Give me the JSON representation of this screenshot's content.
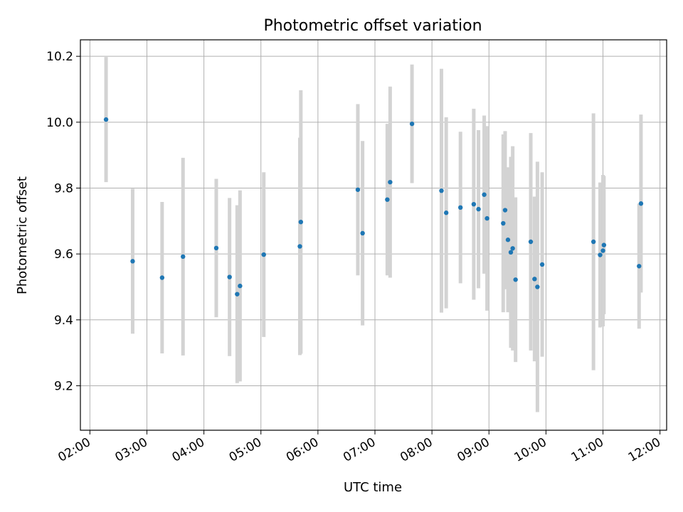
{
  "chart_data": {
    "type": "scatter",
    "title": "Photometric offset variation",
    "xlabel": "UTC time",
    "ylabel": "Photometric offset",
    "x_ticks": [
      "02:00",
      "03:00",
      "04:00",
      "05:00",
      "06:00",
      "07:00",
      "08:00",
      "09:00",
      "10:00",
      "11:00",
      "12:00"
    ],
    "y_ticks": [
      9.2,
      9.4,
      9.6,
      9.8,
      10.0,
      10.2
    ],
    "xlim": [
      "01:50",
      "12:07"
    ],
    "ylim": [
      9.065,
      10.25
    ],
    "grid": true,
    "marker_color": "#1f77b4",
    "errorbar_color": "#d3d3d3",
    "points": [
      {
        "time": "02:17",
        "y": 10.008,
        "err": 0.19
      },
      {
        "time": "02:45",
        "y": 9.578,
        "err": 0.22
      },
      {
        "time": "03:16",
        "y": 9.528,
        "err": 0.23
      },
      {
        "time": "03:38",
        "y": 9.592,
        "err": 0.3
      },
      {
        "time": "04:13",
        "y": 9.618,
        "err": 0.21
      },
      {
        "time": "04:27",
        "y": 9.53,
        "err": 0.24
      },
      {
        "time": "04:35",
        "y": 9.478,
        "err": 0.27
      },
      {
        "time": "04:38",
        "y": 9.503,
        "err": 0.29
      },
      {
        "time": "05:03",
        "y": 9.598,
        "err": 0.25
      },
      {
        "time": "05:41",
        "y": 9.623,
        "err": 0.33
      },
      {
        "time": "05:42",
        "y": 9.697,
        "err": 0.4
      },
      {
        "time": "06:42",
        "y": 9.795,
        "err": 0.26
      },
      {
        "time": "06:47",
        "y": 9.663,
        "err": 0.28
      },
      {
        "time": "07:13",
        "y": 9.765,
        "err": 0.23
      },
      {
        "time": "07:16",
        "y": 9.818,
        "err": 0.29
      },
      {
        "time": "07:39",
        "y": 9.995,
        "err": 0.18
      },
      {
        "time": "08:10",
        "y": 9.792,
        "err": 0.37
      },
      {
        "time": "08:15",
        "y": 9.725,
        "err": 0.29
      },
      {
        "time": "08:30",
        "y": 9.741,
        "err": 0.23
      },
      {
        "time": "08:44",
        "y": 9.751,
        "err": 0.29
      },
      {
        "time": "08:49",
        "y": 9.736,
        "err": 0.24
      },
      {
        "time": "08:55",
        "y": 9.78,
        "err": 0.24
      },
      {
        "time": "08:58",
        "y": 9.708,
        "err": 0.28
      },
      {
        "time": "09:15",
        "y": 9.693,
        "err": 0.27
      },
      {
        "time": "09:17",
        "y": 9.733,
        "err": 0.24
      },
      {
        "time": "09:20",
        "y": 9.643,
        "err": 0.22
      },
      {
        "time": "09:23",
        "y": 9.605,
        "err": 0.29
      },
      {
        "time": "09:25",
        "y": 9.617,
        "err": 0.31
      },
      {
        "time": "09:28",
        "y": 9.522,
        "err": 0.25
      },
      {
        "time": "09:44",
        "y": 9.637,
        "err": 0.33
      },
      {
        "time": "09:48",
        "y": 9.524,
        "err": 0.25
      },
      {
        "time": "09:51",
        "y": 9.5,
        "err": 0.38
      },
      {
        "time": "09:56",
        "y": 9.568,
        "err": 0.28
      },
      {
        "time": "10:50",
        "y": 9.637,
        "err": 0.39
      },
      {
        "time": "10:57",
        "y": 9.597,
        "err": 0.22
      },
      {
        "time": "11:00",
        "y": 9.61,
        "err": 0.23
      },
      {
        "time": "11:01",
        "y": 9.627,
        "err": 0.21
      },
      {
        "time": "11:38",
        "y": 9.563,
        "err": 0.19
      },
      {
        "time": "11:40",
        "y": 9.753,
        "err": 0.27
      }
    ]
  }
}
